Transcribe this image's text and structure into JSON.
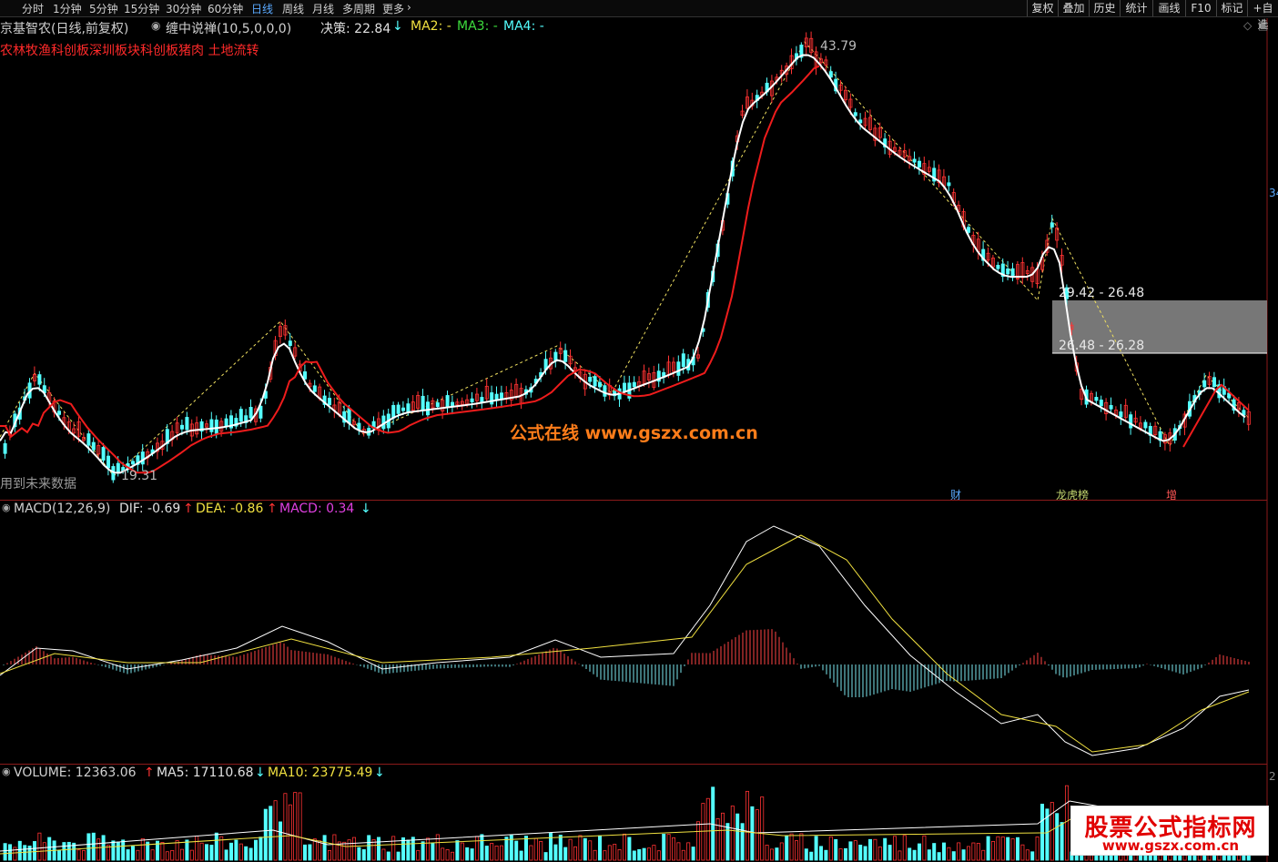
{
  "toolbar": {
    "periods": [
      "分时",
      "1分钟",
      "5分钟",
      "15分钟",
      "30分钟",
      "60分钟",
      "日线",
      "周线",
      "月线",
      "多周期",
      "更多"
    ],
    "active_period": "日线",
    "right_buttons": [
      "复权",
      "叠加",
      "历史",
      "统计",
      "画线",
      "F10",
      "标记",
      "+自选"
    ]
  },
  "header": {
    "stock_title": "京基智农(日线,前复权)",
    "indicator_name": "缠中说禅(10,5,0,0,0)",
    "decision_label": "决策: 22.84",
    "ma2": "MA2: -",
    "ma3": "MA3: -",
    "ma4": "MA4: -",
    "concepts": "农林牧渔科创板深圳板块科创板猪肉 土地流转"
  },
  "price_chart": {
    "high_label": "43.79",
    "low_label": "19.31",
    "future_data_note": "用到未来数据",
    "zone_upper": "29.42 - 26.48",
    "zone_lower": "26.48 - 26.28",
    "right_axis_tag": "34",
    "event_tags": [
      "财",
      "龙虎榜",
      "增"
    ],
    "watermark_center": "公式在线  www.gszx.com.cn",
    "colors": {
      "up": "#ff3333",
      "down": "#54ffff",
      "ma_white": "#ffffff",
      "ma_red": "#ee1c1c",
      "dashed": "#f0e060"
    }
  },
  "macd_panel": {
    "title": "MACD(12,26,9)",
    "dif": "DIF: -0.69",
    "dea": "DEA: -0.86",
    "macd": "MACD: 0.34"
  },
  "volume_panel": {
    "volume": "VOLUME: 12363.06",
    "ma5": "MA5: 17110.68",
    "ma10": "MA10: 23775.49",
    "axis_tag": "2"
  },
  "corner_watermark": {
    "title": "股票公式指标网",
    "url": "www.gszx.com.cn"
  }
}
